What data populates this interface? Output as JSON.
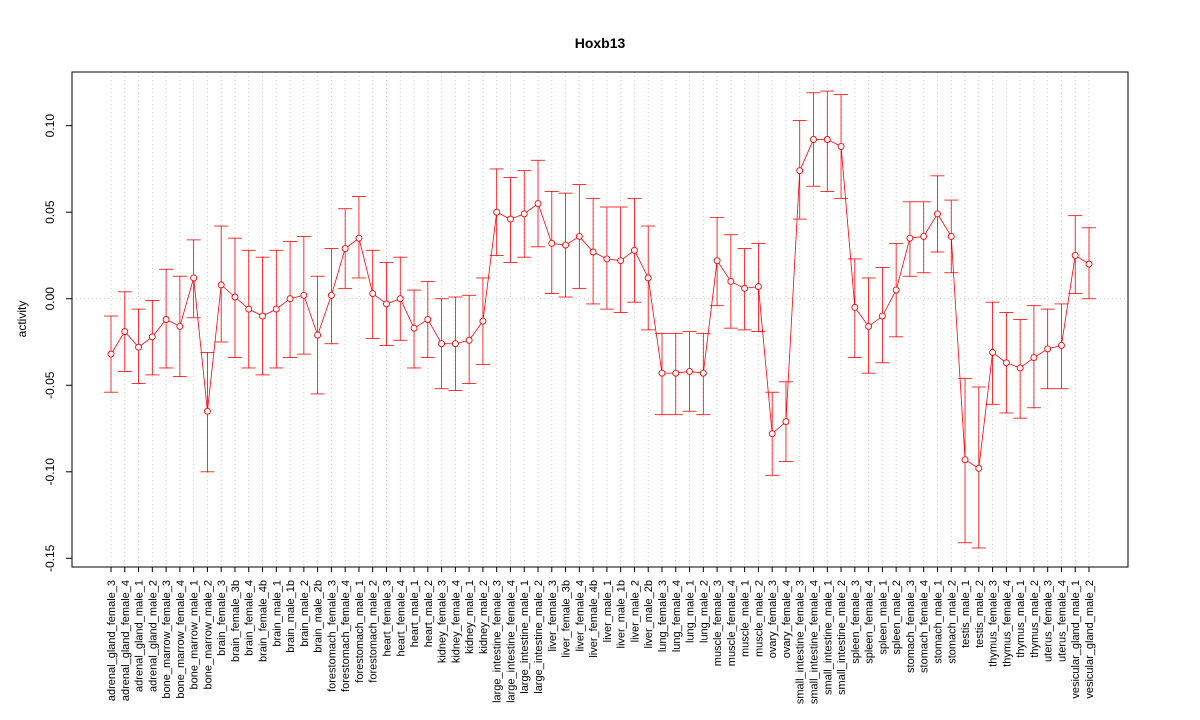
{
  "chart_data": {
    "type": "line",
    "title": "Hoxb13",
    "xlabel": "",
    "ylabel": "activity",
    "ylim": [
      -0.155,
      0.131
    ],
    "yticks": [
      0.1,
      0.05,
      0.0,
      -0.05,
      -0.1,
      -0.15
    ],
    "ytick_labels": [
      "0.10",
      "0.05",
      "0.00",
      "-0.05",
      "-0.10",
      "-0.15"
    ],
    "grid": "vertical dotted at each category, horizontal dotted at 0",
    "series_color": "#ff0000",
    "categories": [
      "adrenal_gland_female_3",
      "adrenal_gland_female_4",
      "adrenal_gland_male_1",
      "adrenal_gland_male_2",
      "bone_marrow_female_3",
      "bone_marrow_female_4",
      "bone_marrow_male_1",
      "bone_marrow_male_2",
      "brain_female_3",
      "brain_female_3b",
      "brain_female_4",
      "brain_female_4b",
      "brain_male_1",
      "brain_male_1b",
      "brain_male_2",
      "brain_male_2b",
      "forestomach_female_3",
      "forestomach_female_4",
      "forestomach_male_1",
      "forestomach_male_2",
      "heart_female_3",
      "heart_female_4",
      "heart_male_1",
      "heart_male_2",
      "kidney_female_3",
      "kidney_female_4",
      "kidney_male_1",
      "kidney_male_2",
      "large_intestine_female_3",
      "large_intestine_female_4",
      "large_intestine_male_1",
      "large_intestine_male_2",
      "liver_female_3",
      "liver_female_3b",
      "liver_female_4",
      "liver_female_4b",
      "liver_male_1",
      "liver_male_1b",
      "liver_male_2",
      "liver_male_2b",
      "lung_female_3",
      "lung_female_4",
      "lung_male_1",
      "lung_male_2",
      "muscle_female_3",
      "muscle_female_4",
      "muscle_male_1",
      "muscle_male_2",
      "ovary_female_3",
      "ovary_female_4",
      "small_intestine_female_3",
      "small_intestine_female_4",
      "small_intestine_male_1",
      "small_intestine_male_2",
      "spleen_female_3",
      "spleen_female_4",
      "spleen_male_1",
      "spleen_male_2",
      "stomach_female_3",
      "stomach_female_4",
      "stomach_male_1",
      "stomach_male_2",
      "testis_male_1",
      "testis_male_2",
      "thymus_female_3",
      "thymus_female_4",
      "thymus_male_1",
      "thymus_male_2",
      "uterus_female_3",
      "uterus_female_4",
      "vesicular_gland_male_1",
      "vesicular_gland_male_2"
    ],
    "values": [
      -0.032,
      -0.019,
      -0.028,
      -0.022,
      -0.012,
      -0.016,
      0.012,
      -0.065,
      0.008,
      0.001,
      -0.006,
      -0.01,
      -0.006,
      0.0,
      0.002,
      -0.021,
      0.002,
      0.029,
      0.035,
      0.003,
      -0.003,
      0.0,
      -0.017,
      -0.012,
      -0.026,
      -0.026,
      -0.024,
      -0.013,
      0.05,
      0.046,
      0.049,
      0.055,
      0.032,
      0.031,
      0.036,
      0.027,
      0.023,
      0.022,
      0.028,
      0.012,
      -0.043,
      -0.043,
      -0.042,
      -0.043,
      0.022,
      0.01,
      0.006,
      0.007,
      -0.078,
      -0.071,
      0.074,
      0.092,
      0.092,
      0.088,
      -0.005,
      -0.016,
      -0.01,
      0.005,
      0.035,
      0.036,
      0.049,
      0.036,
      -0.093,
      -0.098,
      -0.031,
      -0.037,
      -0.04,
      -0.034,
      -0.029,
      -0.027,
      0.025,
      0.02
    ],
    "lower": [
      -0.054,
      -0.042,
      -0.049,
      -0.044,
      -0.04,
      -0.045,
      -0.011,
      -0.1,
      -0.025,
      -0.034,
      -0.04,
      -0.044,
      -0.04,
      -0.034,
      -0.032,
      -0.055,
      -0.026,
      0.006,
      0.012,
      -0.023,
      -0.027,
      -0.024,
      -0.04,
      -0.034,
      -0.052,
      -0.053,
      -0.049,
      -0.038,
      0.025,
      0.021,
      0.024,
      0.03,
      0.003,
      0.001,
      0.006,
      -0.003,
      -0.006,
      -0.008,
      -0.002,
      -0.018,
      -0.067,
      -0.067,
      -0.065,
      -0.067,
      -0.004,
      -0.017,
      -0.018,
      -0.019,
      -0.102,
      -0.094,
      0.046,
      0.065,
      0.062,
      0.058,
      -0.034,
      -0.043,
      -0.037,
      -0.022,
      0.013,
      0.015,
      0.027,
      0.015,
      -0.141,
      -0.144,
      -0.061,
      -0.066,
      -0.069,
      -0.063,
      -0.052,
      -0.052,
      0.003,
      0.0
    ],
    "upper": [
      -0.01,
      0.004,
      -0.006,
      -0.001,
      0.017,
      0.013,
      0.034,
      -0.031,
      0.042,
      0.035,
      0.028,
      0.024,
      0.028,
      0.033,
      0.036,
      0.013,
      0.029,
      0.052,
      0.059,
      0.028,
      0.021,
      0.024,
      0.005,
      0.01,
      0.0,
      0.001,
      0.002,
      0.012,
      0.075,
      0.07,
      0.074,
      0.08,
      0.062,
      0.061,
      0.066,
      0.058,
      0.053,
      0.053,
      0.058,
      0.042,
      -0.02,
      -0.02,
      -0.019,
      -0.02,
      0.047,
      0.037,
      0.029,
      0.032,
      -0.054,
      -0.048,
      0.103,
      0.119,
      0.12,
      0.118,
      0.023,
      0.012,
      0.018,
      0.032,
      0.056,
      0.056,
      0.071,
      0.057,
      -0.046,
      -0.051,
      -0.002,
      -0.008,
      -0.012,
      -0.004,
      -0.006,
      -0.003,
      0.048,
      0.041
    ]
  }
}
